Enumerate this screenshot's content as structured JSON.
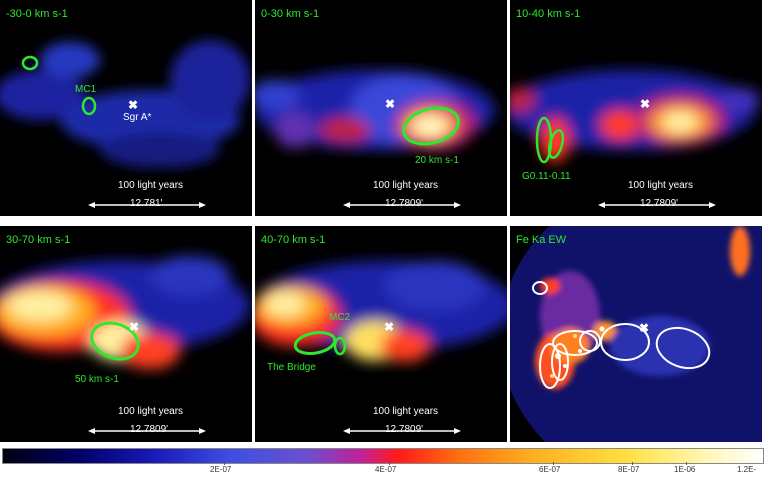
{
  "panels": [
    {
      "label": "-30-0 km s-1",
      "scale_text": "100 light years",
      "scale_value": "12.781'",
      "annotations": {
        "mc1": "MC1",
        "sgra": "Sgr A*"
      }
    },
    {
      "label": "0-30 km s-1",
      "scale_text": "100 light years",
      "scale_value": "12.7809'",
      "annotations": {
        "speed": "20 km s-1"
      }
    },
    {
      "label": "10-40 km s-1",
      "scale_text": "100 light years",
      "scale_value": "12.7809'",
      "annotations": {
        "g011": "G0.11-0.11"
      }
    },
    {
      "label": "30-70 km s-1",
      "scale_text": "100 light years",
      "scale_value": "12.7809'",
      "annotations": {
        "speed": "50 km s-1"
      }
    },
    {
      "label": "40-70 km s-1",
      "scale_text": "100 light years",
      "scale_value": "12.7809'",
      "annotations": {
        "mc2": "MC2",
        "bridge": "The Bridge"
      }
    },
    {
      "label": "Fe Ka EW"
    }
  ],
  "colorbar": {
    "ticks": [
      "2E-07",
      "4E-07",
      "6E-07",
      "8E-07",
      "1E-06",
      "1.2E-"
    ]
  },
  "colors": {
    "label_green": "#2ee82e",
    "marker_white": "#ffffff"
  }
}
